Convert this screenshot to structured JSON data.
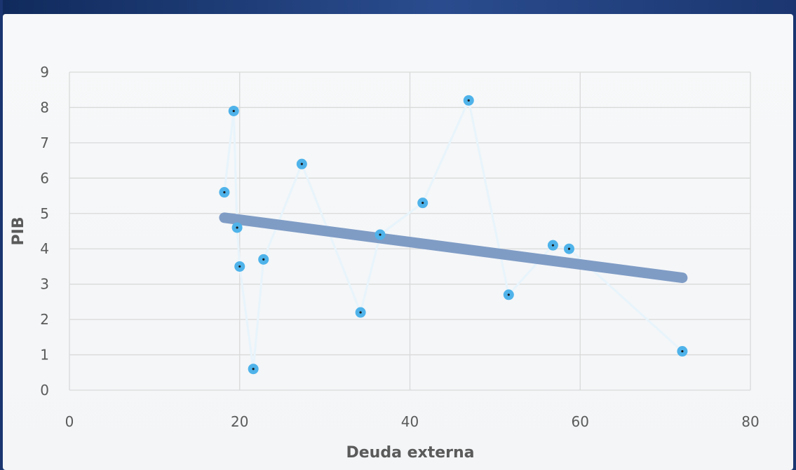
{
  "chart_data": {
    "type": "scatter",
    "title": "",
    "xlabel": "Deuda externa",
    "ylabel": "PIB",
    "xlim": [
      0,
      80
    ],
    "ylim": [
      0,
      9
    ],
    "x_ticks": [
      "0",
      "20",
      "40",
      "60",
      "80"
    ],
    "y_ticks": [
      "0",
      "1",
      "2",
      "3",
      "4",
      "5",
      "6",
      "7",
      "8",
      "9"
    ],
    "grid": true,
    "legend": "none",
    "series": [
      {
        "points": [
          {
            "x": 18.2,
            "y": 5.6
          },
          {
            "x": 19.3,
            "y": 7.9
          },
          {
            "x": 19.7,
            "y": 4.6
          },
          {
            "x": 20.0,
            "y": 3.5
          },
          {
            "x": 21.6,
            "y": 0.6
          },
          {
            "x": 22.8,
            "y": 3.7
          },
          {
            "x": 27.3,
            "y": 6.4
          },
          {
            "x": 34.2,
            "y": 2.2
          },
          {
            "x": 36.5,
            "y": 4.4
          },
          {
            "x": 41.5,
            "y": 5.3
          },
          {
            "x": 46.9,
            "y": 8.2
          },
          {
            "x": 51.6,
            "y": 2.7
          },
          {
            "x": 56.8,
            "y": 4.1
          },
          {
            "x": 58.7,
            "y": 4.0
          },
          {
            "x": 72.0,
            "y": 1.1
          }
        ]
      }
    ],
    "trendline": {
      "x_start": 18.2,
      "y_start": 4.88,
      "x_end": 72.0,
      "y_end": 3.18
    },
    "colors": {
      "marker": "#4fb3ea",
      "marker_center": "#1a1a1a",
      "connector_line": "#e8f4fb",
      "trendline": "#7f9cc5",
      "grid": "#d9d9d9",
      "frame": "#1f3b73"
    }
  }
}
